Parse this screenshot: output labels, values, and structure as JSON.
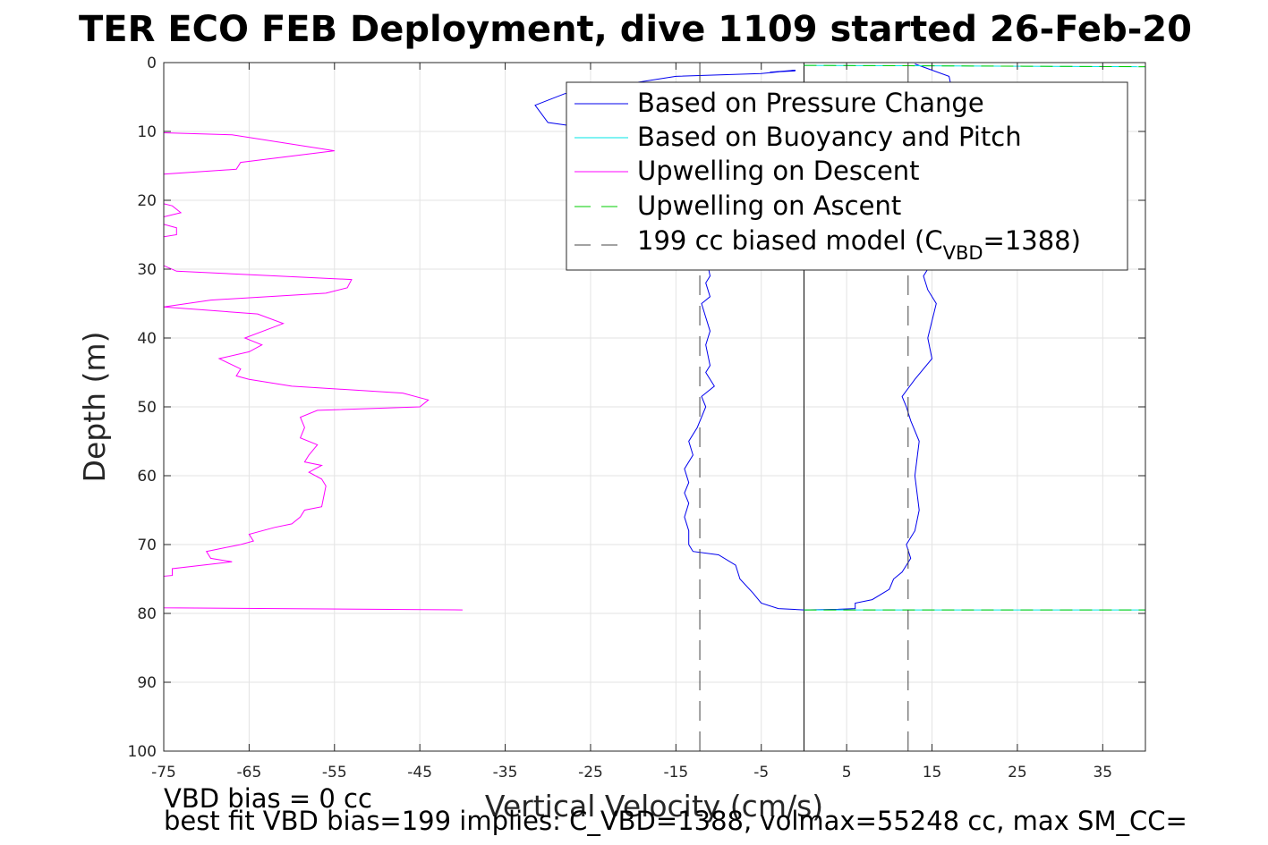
{
  "chart_data": {
    "type": "line",
    "title": "TER ECO FEB Deployment, dive 1109 started 26-Feb-20",
    "xlabel": "Vertical Velocity (cm/s)",
    "ylabel": "Depth (m)",
    "xlim": [
      -75,
      40
    ],
    "ylim": [
      0,
      100
    ],
    "y_reversed": true,
    "grid": true,
    "xticks": [
      -75,
      -65,
      -55,
      -45,
      -35,
      -25,
      -15,
      -5,
      5,
      15,
      25,
      35
    ],
    "xtick_labels": [
      "-75",
      "-65",
      "-55",
      "-45",
      "-35",
      "-25",
      "-15",
      "-5",
      "5",
      "15",
      "25",
      "35"
    ],
    "yticks": [
      0,
      10,
      20,
      30,
      40,
      50,
      60,
      70,
      80,
      90,
      100
    ],
    "ytick_labels": [
      "0",
      "10",
      "20",
      "30",
      "40",
      "50",
      "60",
      "70",
      "80",
      "90",
      "100"
    ],
    "legend": {
      "placement": "top-right",
      "entries": [
        "Based on Pressure Change",
        "Based on Buoyancy and Pitch",
        "Upwelling on Descent",
        "Upwelling on Ascent"
      ],
      "model_entry": {
        "prefix": "199 cc biased model (C",
        "sub": "VBD",
        "suffix": "=1388)"
      }
    },
    "series": [
      {
        "name": "Based on Pressure Change",
        "color": "#0000ee",
        "style": "solid",
        "points": [
          [
            -1,
            1.2
          ],
          [
            -4,
            1.4
          ],
          [
            -1,
            1.1
          ],
          [
            -5,
            1.6
          ],
          [
            -15,
            2.0
          ],
          [
            -28,
            4.5
          ],
          [
            -31.5,
            6.2
          ],
          [
            -30,
            8.7
          ],
          [
            -20,
            10.5
          ],
          [
            -14,
            13
          ],
          [
            -12.5,
            18
          ],
          [
            -12,
            23
          ],
          [
            -11.5,
            28
          ],
          [
            -11,
            31
          ],
          [
            -11.5,
            32
          ],
          [
            -11,
            34
          ],
          [
            -12,
            35
          ],
          [
            -11.5,
            37
          ],
          [
            -11,
            39
          ],
          [
            -11.5,
            41
          ],
          [
            -11,
            44
          ],
          [
            -11.5,
            45
          ],
          [
            -10.5,
            47
          ],
          [
            -12,
            48.5
          ],
          [
            -11.5,
            50
          ],
          [
            -12.5,
            53
          ],
          [
            -13.5,
            55
          ],
          [
            -13,
            57
          ],
          [
            -14,
            59
          ],
          [
            -13.5,
            61
          ],
          [
            -14,
            62.5
          ],
          [
            -13.5,
            64
          ],
          [
            -14,
            66
          ],
          [
            -13.5,
            68
          ],
          [
            -13.5,
            70
          ],
          [
            -13,
            71
          ],
          [
            -10,
            71.5
          ],
          [
            -8,
            73
          ],
          [
            -7.5,
            75
          ],
          [
            -6,
            77
          ],
          [
            -5,
            78.5
          ],
          [
            -3,
            79.3
          ],
          [
            0,
            79.5
          ],
          [
            4,
            79.4
          ],
          [
            6,
            79.3
          ],
          [
            6,
            78.5
          ],
          [
            8,
            78
          ],
          [
            10,
            76.5
          ],
          [
            10.5,
            75
          ],
          [
            11.5,
            74
          ],
          [
            12,
            73
          ],
          [
            12.5,
            72
          ],
          [
            12,
            70
          ],
          [
            13,
            68
          ],
          [
            13.5,
            65
          ],
          [
            13,
            60
          ],
          [
            13.5,
            55
          ],
          [
            12.5,
            52
          ],
          [
            12,
            50
          ],
          [
            11.5,
            48.5
          ],
          [
            13,
            46
          ],
          [
            15,
            43
          ],
          [
            14.5,
            40
          ],
          [
            15.5,
            35
          ],
          [
            14.5,
            33
          ],
          [
            14,
            31
          ],
          [
            15,
            29
          ],
          [
            16,
            26
          ],
          [
            17.5,
            20
          ],
          [
            18,
            15
          ],
          [
            18,
            10
          ],
          [
            17.5,
            5
          ],
          [
            17,
            2
          ],
          [
            13,
            0.2
          ]
        ]
      },
      {
        "name": "Based on Buoyancy and Pitch",
        "color": "#00e5e5",
        "style": "solid",
        "points": [
          [
            0,
            0.4
          ],
          [
            40,
            0.6
          ],
          [
            0,
            79.5
          ],
          [
            40,
            79.5
          ]
        ]
      },
      {
        "name": "Upwelling on Descent",
        "color": "#ff00ff",
        "style": "solid",
        "points": [
          [
            -75,
            10.2
          ],
          [
            -67,
            10.5
          ],
          [
            -55,
            12.8
          ],
          [
            -66,
            14.5
          ],
          [
            -66.5,
            15.5
          ],
          [
            -75,
            16.2
          ],
          [
            -75,
            20.5
          ],
          [
            -74,
            20.8
          ],
          [
            -73,
            21.8
          ],
          [
            -75,
            22.4
          ],
          [
            -75,
            23.5
          ],
          [
            -73.5,
            24
          ],
          [
            -73.5,
            25
          ],
          [
            -75,
            25.3
          ],
          [
            -75,
            29.5
          ],
          [
            -73.5,
            30.3
          ],
          [
            -53,
            31.5
          ],
          [
            -53.5,
            32.7
          ],
          [
            -56,
            33.5
          ],
          [
            -69.5,
            34.5
          ],
          [
            -75,
            35.5
          ],
          [
            -64,
            36.5
          ],
          [
            -61,
            37.9
          ],
          [
            -65.5,
            40
          ],
          [
            -63.5,
            41
          ],
          [
            -65,
            42
          ],
          [
            -68.5,
            43
          ],
          [
            -66,
            44.5
          ],
          [
            -66.5,
            45.5
          ],
          [
            -65,
            46
          ],
          [
            -60,
            47
          ],
          [
            -47,
            48
          ],
          [
            -44,
            49
          ],
          [
            -45,
            50
          ],
          [
            -57,
            50.5
          ],
          [
            -59,
            51.5
          ],
          [
            -58.5,
            53
          ],
          [
            -59,
            54.5
          ],
          [
            -57,
            55.5
          ],
          [
            -58,
            57
          ],
          [
            -58.5,
            58
          ],
          [
            -56.5,
            58.5
          ],
          [
            -58,
            59.5
          ],
          [
            -56.5,
            60.5
          ],
          [
            -56,
            61.5
          ],
          [
            -56.5,
            64.5
          ],
          [
            -58.5,
            65
          ],
          [
            -59,
            66
          ],
          [
            -60,
            67
          ],
          [
            -62,
            67.5
          ],
          [
            -65,
            68.5
          ],
          [
            -64.5,
            69.5
          ],
          [
            -66,
            70
          ],
          [
            -70,
            71
          ],
          [
            -69.5,
            72
          ],
          [
            -67,
            72.5
          ],
          [
            -74,
            73.5
          ],
          [
            -74,
            74.5
          ],
          [
            -75,
            74.6
          ],
          [
            -75,
            79.2
          ],
          [
            -40,
            79.5
          ]
        ]
      },
      {
        "name": "Upwelling on Ascent",
        "color": "#00cc00",
        "style": "dashed",
        "points": [
          [
            0,
            0.4
          ],
          [
            40,
            0.6
          ],
          [
            0,
            79.5
          ],
          [
            40,
            79.5
          ]
        ]
      },
      {
        "name": "199 cc biased model (C_VBD=1388)",
        "color": "#444444",
        "style": "dashed",
        "points_left": [
          [
            -12.2,
            0
          ],
          [
            -12.2,
            100
          ]
        ],
        "points_right": [
          [
            12.2,
            0
          ],
          [
            12.2,
            100
          ]
        ]
      }
    ],
    "zero_line": [
      [
        0,
        0
      ],
      [
        0,
        100
      ]
    ],
    "annotations": [
      "VBD bias = 0 cc",
      "best fit VBD bias=199 implies: C_VBD=1388, volmax=55248 cc, max SM_CC="
    ]
  }
}
